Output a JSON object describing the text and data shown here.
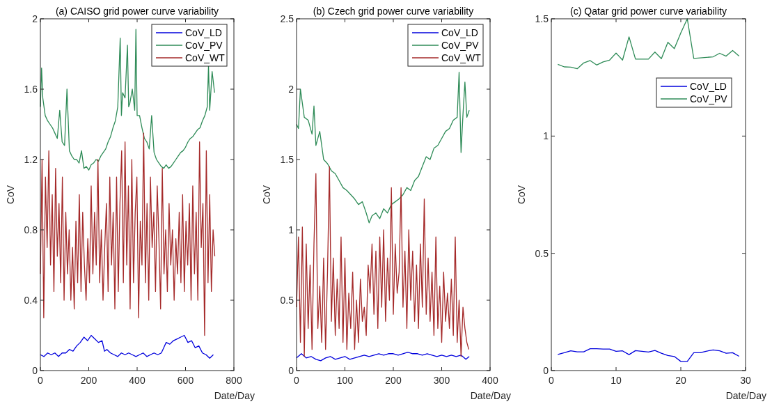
{
  "chart_data": [
    {
      "type": "line",
      "title": "(a) CAISO grid power curve variability",
      "xlabel": "Date/Day",
      "ylabel": "CoV",
      "xlim": [
        0,
        800
      ],
      "xticks": [
        0,
        200,
        400,
        600,
        800
      ],
      "ylim": [
        0,
        2
      ],
      "yticks": [
        0,
        0.4,
        0.8,
        1.2,
        1.6,
        2
      ],
      "legend": "top right",
      "series": [
        {
          "name": "CoV_LD",
          "color": "#0000dd",
          "x": [
            0,
            15,
            30,
            45,
            60,
            75,
            90,
            105,
            120,
            135,
            150,
            165,
            180,
            195,
            210,
            225,
            240,
            255,
            265,
            275,
            290,
            305,
            320,
            335,
            350,
            365,
            380,
            395,
            410,
            425,
            440,
            455,
            470,
            485,
            500,
            510,
            520,
            535,
            550,
            565,
            580,
            595,
            610,
            625,
            640,
            655,
            670,
            685,
            700,
            715
          ],
          "values": [
            0.09,
            0.08,
            0.1,
            0.09,
            0.1,
            0.08,
            0.1,
            0.1,
            0.12,
            0.11,
            0.14,
            0.16,
            0.19,
            0.17,
            0.2,
            0.18,
            0.16,
            0.17,
            0.11,
            0.12,
            0.1,
            0.09,
            0.08,
            0.1,
            0.09,
            0.1,
            0.09,
            0.08,
            0.09,
            0.1,
            0.08,
            0.09,
            0.1,
            0.09,
            0.1,
            0.13,
            0.16,
            0.15,
            0.17,
            0.18,
            0.19,
            0.2,
            0.16,
            0.17,
            0.13,
            0.14,
            0.1,
            0.09,
            0.07,
            0.09
          ]
        },
        {
          "name": "CoV_PV",
          "color": "#2e8b57",
          "x": [
            0,
            5,
            10,
            20,
            30,
            40,
            50,
            60,
            70,
            80,
            90,
            100,
            110,
            120,
            130,
            140,
            150,
            160,
            170,
            180,
            190,
            200,
            210,
            220,
            230,
            240,
            250,
            260,
            270,
            280,
            290,
            300,
            310,
            320,
            330,
            335,
            340,
            350,
            360,
            365,
            370,
            380,
            390,
            395,
            400,
            410,
            420,
            430,
            440,
            450,
            460,
            470,
            480,
            490,
            500,
            510,
            520,
            530,
            540,
            550,
            560,
            570,
            580,
            590,
            600,
            610,
            620,
            630,
            640,
            650,
            660,
            670,
            680,
            690,
            695,
            700,
            710,
            720
          ],
          "values": [
            1.5,
            1.72,
            1.55,
            1.45,
            1.42,
            1.4,
            1.38,
            1.35,
            1.32,
            1.48,
            1.3,
            1.28,
            1.6,
            1.25,
            1.22,
            1.2,
            1.2,
            1.18,
            1.25,
            1.15,
            1.16,
            1.14,
            1.17,
            1.18,
            1.2,
            1.19,
            1.22,
            1.24,
            1.26,
            1.3,
            1.33,
            1.38,
            1.42,
            1.5,
            1.89,
            1.45,
            1.58,
            1.55,
            1.85,
            1.5,
            1.52,
            1.6,
            1.48,
            1.94,
            1.45,
            1.45,
            1.38,
            1.32,
            1.3,
            1.26,
            1.45,
            1.24,
            1.2,
            1.18,
            1.16,
            1.15,
            1.17,
            1.15,
            1.16,
            1.18,
            1.2,
            1.22,
            1.24,
            1.25,
            1.27,
            1.3,
            1.32,
            1.33,
            1.35,
            1.37,
            1.38,
            1.42,
            1.45,
            1.5,
            1.73,
            1.48,
            1.7,
            1.58
          ]
        },
        {
          "name": "CoV_WT",
          "color": "#a52a2a",
          "x": [
            0,
            7,
            14,
            21,
            28,
            35,
            42,
            49,
            56,
            63,
            70,
            77,
            84,
            91,
            98,
            105,
            112,
            119,
            126,
            133,
            140,
            147,
            154,
            161,
            168,
            175,
            182,
            189,
            196,
            203,
            210,
            217,
            224,
            231,
            238,
            245,
            252,
            259,
            266,
            273,
            280,
            287,
            294,
            301,
            308,
            315,
            322,
            329,
            336,
            343,
            350,
            357,
            364,
            371,
            378,
            385,
            392,
            399,
            406,
            413,
            420,
            427,
            434,
            441,
            448,
            455,
            462,
            469,
            476,
            483,
            490,
            497,
            504,
            511,
            518,
            525,
            532,
            539,
            546,
            553,
            560,
            567,
            574,
            581,
            588,
            595,
            602,
            609,
            616,
            623,
            630,
            637,
            644,
            651,
            658,
            665,
            672,
            679,
            686,
            693,
            700,
            707,
            714,
            721
          ],
          "values": [
            0.55,
            1.2,
            0.3,
            1.1,
            0.7,
            1.25,
            0.6,
            1.0,
            0.45,
            1.15,
            0.65,
            0.95,
            0.5,
            1.1,
            0.4,
            0.9,
            0.55,
            0.8,
            0.4,
            0.7,
            0.35,
            0.85,
            0.5,
            1.0,
            0.45,
            0.9,
            0.6,
            0.4,
            0.75,
            0.5,
            1.05,
            0.55,
            0.9,
            0.6,
            1.2,
            0.5,
            0.8,
            0.4,
            0.7,
            0.95,
            0.45,
            1.1,
            0.6,
            0.9,
            0.35,
            1.1,
            0.45,
            0.95,
            1.25,
            0.5,
            1.3,
            0.6,
            1.05,
            0.35,
            1.2,
            0.5,
            0.9,
            1.1,
            0.3,
            0.85,
            0.6,
            1.35,
            0.5,
            0.95,
            0.4,
            1.1,
            0.7,
            0.9,
            0.45,
            1.05,
            0.75,
            0.35,
            1.15,
            0.55,
            0.8,
            0.45,
            0.95,
            0.6,
            0.8,
            0.4,
            0.75,
            0.55,
            0.9,
            0.5,
            1.0,
            0.45,
            0.85,
            0.6,
            0.95,
            0.4,
            1.05,
            0.55,
            0.9,
            0.4,
            1.3,
            0.7,
            0.95,
            0.2,
            1.25,
            0.5,
            1.0,
            0.45,
            0.8,
            0.65
          ]
        }
      ]
    },
    {
      "type": "line",
      "title": "(b) Czech grid power curve variability",
      "xlabel": "Date/Day",
      "ylabel": "CoV",
      "xlim": [
        0,
        400
      ],
      "xticks": [
        0,
        100,
        200,
        300,
        400
      ],
      "ylim": [
        0,
        2.5
      ],
      "yticks": [
        0,
        0.5,
        1,
        1.5,
        2,
        2.5
      ],
      "legend": "top right",
      "series": [
        {
          "name": "CoV_LD",
          "color": "#0000dd",
          "x": [
            0,
            10,
            20,
            30,
            40,
            50,
            60,
            70,
            80,
            90,
            100,
            110,
            120,
            130,
            140,
            150,
            160,
            170,
            180,
            190,
            200,
            210,
            220,
            230,
            240,
            250,
            260,
            270,
            280,
            290,
            300,
            310,
            320,
            330,
            340,
            350,
            357
          ],
          "values": [
            0.09,
            0.12,
            0.09,
            0.1,
            0.08,
            0.07,
            0.09,
            0.1,
            0.08,
            0.09,
            0.1,
            0.08,
            0.09,
            0.1,
            0.11,
            0.1,
            0.11,
            0.12,
            0.11,
            0.12,
            0.12,
            0.11,
            0.12,
            0.13,
            0.12,
            0.12,
            0.11,
            0.12,
            0.11,
            0.1,
            0.11,
            0.1,
            0.11,
            0.1,
            0.11,
            0.08,
            0.1
          ]
        },
        {
          "name": "CoV_PV",
          "color": "#2e8b57",
          "x": [
            0,
            4,
            8,
            16,
            24,
            32,
            36,
            40,
            48,
            56,
            64,
            72,
            80,
            88,
            96,
            104,
            112,
            120,
            128,
            136,
            144,
            150,
            156,
            164,
            172,
            180,
            188,
            196,
            204,
            212,
            220,
            228,
            236,
            244,
            252,
            260,
            268,
            276,
            284,
            292,
            300,
            308,
            316,
            324,
            332,
            336,
            340,
            344,
            348,
            352,
            357
          ],
          "values": [
            1.75,
            1.72,
            2.0,
            1.8,
            1.78,
            1.68,
            1.88,
            1.6,
            1.7,
            1.5,
            1.47,
            1.42,
            1.4,
            1.35,
            1.3,
            1.28,
            1.25,
            1.22,
            1.18,
            1.2,
            1.12,
            1.05,
            1.1,
            1.12,
            1.08,
            1.15,
            1.12,
            1.18,
            1.2,
            1.22,
            1.25,
            1.3,
            1.28,
            1.35,
            1.38,
            1.45,
            1.52,
            1.5,
            1.58,
            1.6,
            1.65,
            1.7,
            1.72,
            1.78,
            1.8,
            2.12,
            1.55,
            1.82,
            2.05,
            1.8,
            1.85
          ]
        },
        {
          "name": "CoV_WT",
          "color": "#a52a2a",
          "x": [
            0,
            4,
            8,
            12,
            16,
            20,
            24,
            28,
            32,
            36,
            40,
            44,
            48,
            52,
            56,
            60,
            64,
            68,
            72,
            76,
            80,
            84,
            88,
            92,
            96,
            100,
            104,
            108,
            112,
            116,
            120,
            124,
            128,
            132,
            136,
            140,
            144,
            148,
            152,
            156,
            160,
            164,
            168,
            172,
            176,
            180,
            184,
            188,
            192,
            196,
            200,
            204,
            208,
            212,
            216,
            220,
            224,
            228,
            232,
            236,
            240,
            244,
            248,
            252,
            256,
            260,
            264,
            268,
            272,
            276,
            280,
            284,
            288,
            292,
            296,
            300,
            304,
            308,
            312,
            316,
            320,
            324,
            328,
            332,
            336,
            340,
            344,
            348,
            352,
            356
          ],
          "values": [
            0.45,
            0.95,
            0.2,
            1.02,
            0.1,
            0.9,
            0.3,
            0.75,
            0.15,
            0.9,
            1.4,
            0.3,
            0.6,
            0.2,
            0.8,
            0.15,
            0.7,
            1.45,
            0.35,
            0.8,
            0.25,
            0.65,
            0.3,
            0.95,
            0.2,
            0.8,
            0.15,
            0.55,
            0.3,
            0.7,
            0.15,
            0.5,
            0.2,
            0.65,
            0.35,
            0.45,
            0.25,
            0.75,
            0.55,
            0.9,
            0.4,
            0.85,
            0.3,
            0.95,
            0.45,
            1.0,
            0.35,
            0.8,
            0.5,
            1.3,
            0.4,
            0.9,
            0.55,
            0.7,
            1.3,
            0.45,
            0.85,
            0.3,
            1.0,
            0.5,
            0.85,
            0.35,
            0.75,
            0.3,
            0.9,
            0.45,
            1.22,
            0.4,
            0.8,
            0.35,
            0.7,
            0.25,
            0.95,
            0.3,
            0.6,
            0.2,
            0.7,
            0.35,
            0.55,
            0.3,
            0.65,
            0.25,
            0.95,
            0.2,
            0.5,
            0.1,
            0.45,
            0.3,
            0.2,
            0.15
          ]
        }
      ]
    },
    {
      "type": "line",
      "title": "(c) Qatar grid power curve variability",
      "xlabel": "Date/Day",
      "ylabel": "CoV",
      "xlim": [
        0,
        30
      ],
      "xticks": [
        0,
        10,
        20,
        30
      ],
      "ylim": [
        0,
        1.5
      ],
      "yticks": [
        0,
        0.5,
        1,
        1.5
      ],
      "legend": "right",
      "series": [
        {
          "name": "CoV_LD",
          "color": "#0000dd",
          "x": [
            1,
            2,
            3,
            4,
            5,
            6,
            7,
            8,
            9,
            10,
            11,
            12,
            13,
            14,
            15,
            16,
            17,
            18,
            19,
            20,
            21,
            22,
            23,
            24,
            25,
            26,
            27,
            28,
            29
          ],
          "values": [
            0.069,
            0.076,
            0.084,
            0.08,
            0.08,
            0.093,
            0.093,
            0.092,
            0.092,
            0.082,
            0.084,
            0.068,
            0.085,
            0.082,
            0.079,
            0.086,
            0.074,
            0.064,
            0.06,
            0.039,
            0.039,
            0.076,
            0.076,
            0.083,
            0.088,
            0.084,
            0.074,
            0.076,
            0.061
          ]
        },
        {
          "name": "CoV_PV",
          "color": "#2e8b57",
          "x": [
            1,
            2,
            3,
            4,
            5,
            6,
            7,
            8,
            9,
            10,
            11,
            12,
            13,
            14,
            15,
            16,
            17,
            18,
            19,
            20,
            21,
            22,
            25,
            26,
            27,
            28,
            29
          ],
          "values": [
            1.306,
            1.295,
            1.294,
            1.287,
            1.312,
            1.322,
            1.303,
            1.316,
            1.324,
            1.354,
            1.324,
            1.423,
            1.328,
            1.328,
            1.328,
            1.358,
            1.33,
            1.4,
            1.373,
            1.44,
            1.5,
            1.331,
            1.338,
            1.353,
            1.341,
            1.365,
            1.341
          ]
        }
      ]
    }
  ]
}
